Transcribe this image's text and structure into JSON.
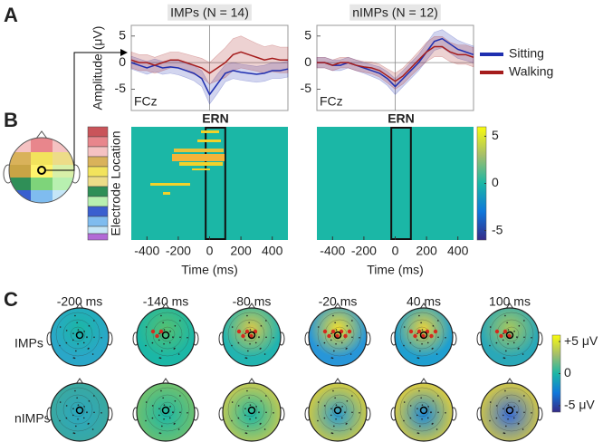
{
  "panel_labels": [
    "A",
    "B",
    "C"
  ],
  "chart_data": [
    {
      "type": "line",
      "title": "IMPs (N = 14)",
      "y_label": "Amplitude (μV)",
      "channel": "FCz",
      "x": [
        -500,
        -450,
        -400,
        -350,
        -300,
        -250,
        -200,
        -150,
        -100,
        -50,
        0,
        50,
        100,
        150,
        200,
        250,
        300,
        350,
        400,
        450,
        500
      ],
      "xlim": [
        -500,
        500
      ],
      "ylim": [
        -9,
        7
      ],
      "yticks": [
        5,
        0,
        -5
      ],
      "series": [
        {
          "name": "Sitting",
          "color": "#1f2fb0",
          "values": [
            0,
            -0.5,
            -1,
            -0.5,
            -1,
            -0.8,
            -1,
            -1.5,
            -2,
            -3,
            -6,
            -4,
            -2,
            -1.5,
            -1.8,
            -2,
            -2.2,
            -2,
            -1.5,
            -1.5,
            -1.2
          ],
          "error": [
            1.2,
            1.2,
            1.2,
            1.2,
            1.2,
            1.2,
            1.3,
            1.3,
            1.4,
            1.5,
            1.8,
            1.8,
            1.6,
            1.5,
            1.5,
            1.5,
            1.5,
            1.5,
            1.5,
            1.5,
            1.5
          ]
        },
        {
          "name": "Walking",
          "color": "#a51c1c",
          "values": [
            0.5,
            0,
            0,
            -0.5,
            0,
            0.5,
            0.5,
            0,
            -0.5,
            -1,
            -2,
            -1,
            0,
            1.5,
            2,
            1.5,
            1,
            0.5,
            0.8,
            0.5,
            0.5
          ],
          "error": [
            1.5,
            1.5,
            1.5,
            1.5,
            1.5,
            1.5,
            1.5,
            1.6,
            1.7,
            1.8,
            2,
            2.4,
            2.8,
            3,
            3,
            2.8,
            2.6,
            2.5,
            2.5,
            2.4,
            2.4
          ]
        }
      ]
    },
    {
      "type": "line",
      "title": "nIMPs (N = 12)",
      "channel": "FCz",
      "x": [
        -500,
        -450,
        -400,
        -350,
        -300,
        -250,
        -200,
        -150,
        -100,
        -50,
        0,
        50,
        100,
        150,
        200,
        250,
        300,
        350,
        400,
        450,
        500
      ],
      "xlim": [
        -500,
        500
      ],
      "ylim": [
        -9,
        7
      ],
      "yticks": [
        5,
        0,
        -5
      ],
      "series": [
        {
          "color": "#1f2fb0",
          "values": [
            0,
            0,
            -0.5,
            -0.5,
            0,
            -0.5,
            -1,
            -1.5,
            -2,
            -3,
            -4.5,
            -3,
            -1.5,
            0,
            2,
            4,
            4.5,
            3.5,
            2.5,
            2,
            1.5
          ],
          "error": [
            1,
            1,
            1,
            1,
            1,
            1,
            1,
            1.1,
            1.2,
            1.3,
            1.5,
            1.5,
            1.5,
            1.5,
            1.6,
            1.7,
            1.7,
            1.7,
            1.7,
            1.6,
            1.6
          ]
        },
        {
          "color": "#a51c1c",
          "values": [
            0,
            0,
            -0.5,
            0,
            0,
            -0.5,
            -0.8,
            -1,
            -1.5,
            -2.5,
            -3.5,
            -2.5,
            -1,
            0.5,
            2,
            3,
            3,
            2,
            1.5,
            1.5,
            1
          ],
          "error": [
            1,
            1,
            1,
            1,
            1,
            1,
            1,
            1.1,
            1.2,
            1.3,
            1.5,
            1.5,
            1.5,
            1.6,
            1.8,
            1.9,
            1.9,
            1.8,
            1.8,
            1.8,
            1.8
          ]
        }
      ]
    },
    {
      "type": "heatmap",
      "title": "ERN",
      "x_label": "Time (ms)",
      "y_label": "Electrode Location",
      "xlim": [
        -500,
        500
      ],
      "xticks": [
        -400,
        -200,
        0,
        200,
        400
      ],
      "ern_window": [
        -25,
        100
      ],
      "baseline": 0,
      "clim": [
        -6,
        6
      ]
    },
    {
      "type": "heatmap",
      "title": "ERN",
      "x_label": "Time (ms)",
      "xlim": [
        -500,
        500
      ],
      "xticks": [
        -400,
        -200,
        0,
        200,
        400
      ],
      "ern_window": [
        -25,
        100
      ],
      "baseline": 0,
      "clim": [
        -6,
        6
      ],
      "cticks": [
        5,
        0,
        -5
      ]
    }
  ],
  "topomaps": {
    "times": [
      "-200 ms",
      "-140 ms",
      "-80 ms",
      "-20 ms",
      "40 ms",
      "100 ms"
    ],
    "groups": [
      "IMPs",
      "nIMPs"
    ],
    "clim": [
      -6,
      6
    ],
    "cticks": [
      {
        "value": 5,
        "label": "+5 μV"
      },
      0,
      {
        "value": -5,
        "label": "-5 μV"
      }
    ]
  }
}
